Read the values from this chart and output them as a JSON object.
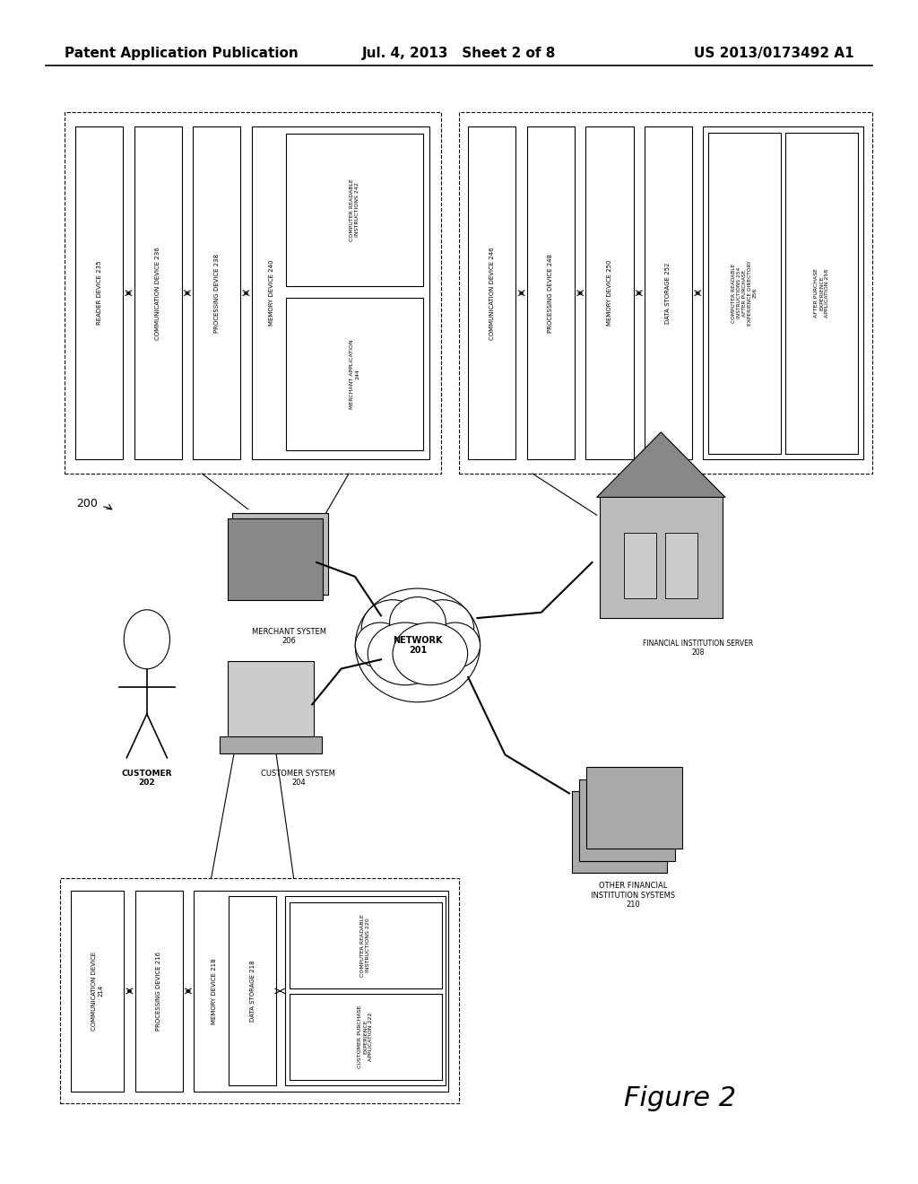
{
  "title_left": "Patent Application Publication",
  "title_mid": "Jul. 4, 2013   Sheet 2 of 8",
  "title_right": "US 2013/0173492 A1",
  "figure_label": "Figure 2",
  "bg_color": "#ffffff",
  "header_font_size": 11,
  "body_font_size": 7.5,
  "small_font_size": 6.5
}
